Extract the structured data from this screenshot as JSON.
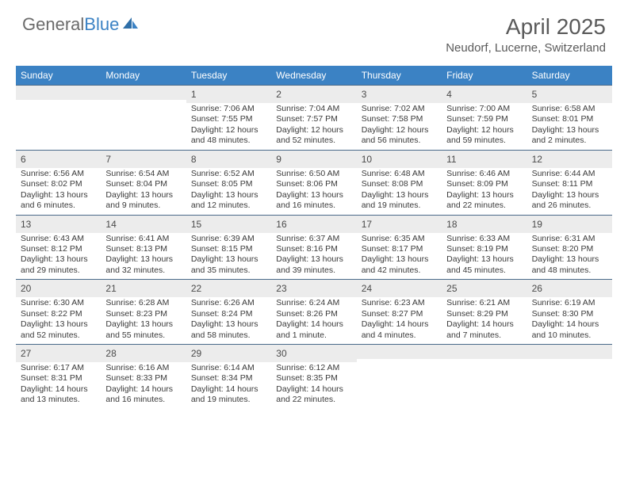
{
  "brand": {
    "name_gray": "General",
    "name_blue": "Blue"
  },
  "title": "April 2025",
  "location": "Neudorf, Lucerne, Switzerland",
  "colors": {
    "header_bg": "#3b82c4",
    "daynum_bg": "#ececec",
    "week_border": "#4a6a8a",
    "text": "#333333",
    "title_text": "#5a5a5a"
  },
  "dow": [
    "Sunday",
    "Monday",
    "Tuesday",
    "Wednesday",
    "Thursday",
    "Friday",
    "Saturday"
  ],
  "weeks": [
    [
      {
        "n": "",
        "sr": "",
        "ss": "",
        "dl": ""
      },
      {
        "n": "",
        "sr": "",
        "ss": "",
        "dl": ""
      },
      {
        "n": "1",
        "sr": "7:06 AM",
        "ss": "7:55 PM",
        "dl": "12 hours and 48 minutes."
      },
      {
        "n": "2",
        "sr": "7:04 AM",
        "ss": "7:57 PM",
        "dl": "12 hours and 52 minutes."
      },
      {
        "n": "3",
        "sr": "7:02 AM",
        "ss": "7:58 PM",
        "dl": "12 hours and 56 minutes."
      },
      {
        "n": "4",
        "sr": "7:00 AM",
        "ss": "7:59 PM",
        "dl": "12 hours and 59 minutes."
      },
      {
        "n": "5",
        "sr": "6:58 AM",
        "ss": "8:01 PM",
        "dl": "13 hours and 2 minutes."
      }
    ],
    [
      {
        "n": "6",
        "sr": "6:56 AM",
        "ss": "8:02 PM",
        "dl": "13 hours and 6 minutes."
      },
      {
        "n": "7",
        "sr": "6:54 AM",
        "ss": "8:04 PM",
        "dl": "13 hours and 9 minutes."
      },
      {
        "n": "8",
        "sr": "6:52 AM",
        "ss": "8:05 PM",
        "dl": "13 hours and 12 minutes."
      },
      {
        "n": "9",
        "sr": "6:50 AM",
        "ss": "8:06 PM",
        "dl": "13 hours and 16 minutes."
      },
      {
        "n": "10",
        "sr": "6:48 AM",
        "ss": "8:08 PM",
        "dl": "13 hours and 19 minutes."
      },
      {
        "n": "11",
        "sr": "6:46 AM",
        "ss": "8:09 PM",
        "dl": "13 hours and 22 minutes."
      },
      {
        "n": "12",
        "sr": "6:44 AM",
        "ss": "8:11 PM",
        "dl": "13 hours and 26 minutes."
      }
    ],
    [
      {
        "n": "13",
        "sr": "6:43 AM",
        "ss": "8:12 PM",
        "dl": "13 hours and 29 minutes."
      },
      {
        "n": "14",
        "sr": "6:41 AM",
        "ss": "8:13 PM",
        "dl": "13 hours and 32 minutes."
      },
      {
        "n": "15",
        "sr": "6:39 AM",
        "ss": "8:15 PM",
        "dl": "13 hours and 35 minutes."
      },
      {
        "n": "16",
        "sr": "6:37 AM",
        "ss": "8:16 PM",
        "dl": "13 hours and 39 minutes."
      },
      {
        "n": "17",
        "sr": "6:35 AM",
        "ss": "8:17 PM",
        "dl": "13 hours and 42 minutes."
      },
      {
        "n": "18",
        "sr": "6:33 AM",
        "ss": "8:19 PM",
        "dl": "13 hours and 45 minutes."
      },
      {
        "n": "19",
        "sr": "6:31 AM",
        "ss": "8:20 PM",
        "dl": "13 hours and 48 minutes."
      }
    ],
    [
      {
        "n": "20",
        "sr": "6:30 AM",
        "ss": "8:22 PM",
        "dl": "13 hours and 52 minutes."
      },
      {
        "n": "21",
        "sr": "6:28 AM",
        "ss": "8:23 PM",
        "dl": "13 hours and 55 minutes."
      },
      {
        "n": "22",
        "sr": "6:26 AM",
        "ss": "8:24 PM",
        "dl": "13 hours and 58 minutes."
      },
      {
        "n": "23",
        "sr": "6:24 AM",
        "ss": "8:26 PM",
        "dl": "14 hours and 1 minute."
      },
      {
        "n": "24",
        "sr": "6:23 AM",
        "ss": "8:27 PM",
        "dl": "14 hours and 4 minutes."
      },
      {
        "n": "25",
        "sr": "6:21 AM",
        "ss": "8:29 PM",
        "dl": "14 hours and 7 minutes."
      },
      {
        "n": "26",
        "sr": "6:19 AM",
        "ss": "8:30 PM",
        "dl": "14 hours and 10 minutes."
      }
    ],
    [
      {
        "n": "27",
        "sr": "6:17 AM",
        "ss": "8:31 PM",
        "dl": "14 hours and 13 minutes."
      },
      {
        "n": "28",
        "sr": "6:16 AM",
        "ss": "8:33 PM",
        "dl": "14 hours and 16 minutes."
      },
      {
        "n": "29",
        "sr": "6:14 AM",
        "ss": "8:34 PM",
        "dl": "14 hours and 19 minutes."
      },
      {
        "n": "30",
        "sr": "6:12 AM",
        "ss": "8:35 PM",
        "dl": "14 hours and 22 minutes."
      },
      {
        "n": "",
        "sr": "",
        "ss": "",
        "dl": ""
      },
      {
        "n": "",
        "sr": "",
        "ss": "",
        "dl": ""
      },
      {
        "n": "",
        "sr": "",
        "ss": "",
        "dl": ""
      }
    ]
  ],
  "labels": {
    "sunrise": "Sunrise: ",
    "sunset": "Sunset: ",
    "daylight": "Daylight: "
  }
}
